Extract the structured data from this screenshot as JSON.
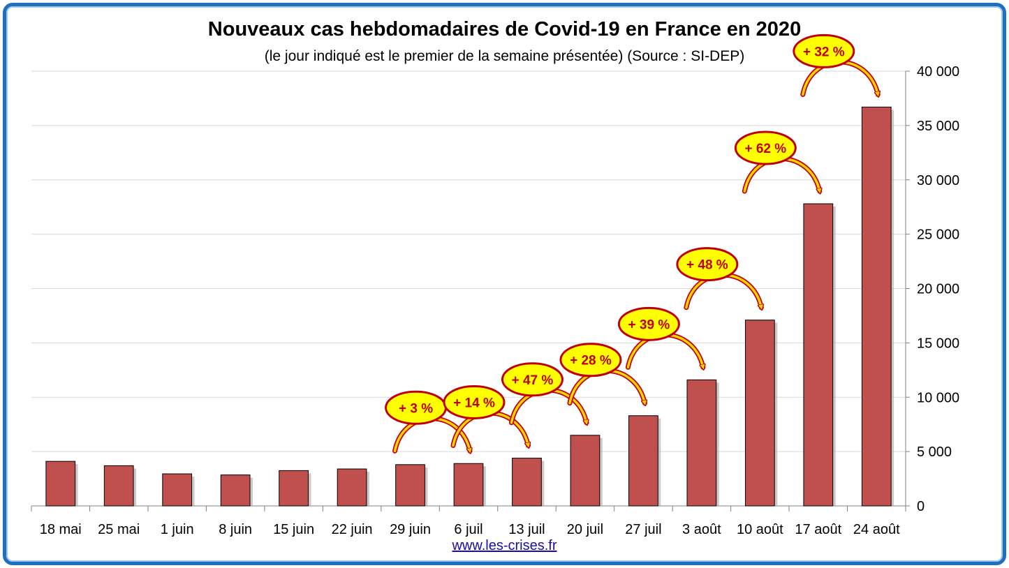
{
  "chart_data": {
    "type": "bar",
    "title": "Nouveaux cas hebdomadaires de Covid-19 en France en 2020",
    "subtitle": "(le jour indiqué est le premier de la semaine présentée) (Source : SI-DEP)",
    "categories": [
      "18 mai",
      "25 mai",
      "1 juin",
      "8 juin",
      "15 juin",
      "22 juin",
      "29 juin",
      "6 juil",
      "13 juil",
      "20 juil",
      "27 juil",
      "3 août",
      "10 août",
      "17 août",
      "24 août"
    ],
    "values": [
      4100,
      3700,
      2950,
      2850,
      3250,
      3400,
      3800,
      3900,
      4400,
      6500,
      8300,
      11600,
      17100,
      27800,
      36700
    ],
    "ylim": [
      0,
      40000
    ],
    "yticks": [
      0,
      5000,
      10000,
      15000,
      20000,
      25000,
      30000,
      35000,
      40000
    ],
    "ytick_labels": [
      "0",
      "5 000",
      "10 000",
      "15 000",
      "20 000",
      "25 000",
      "30 000",
      "35 000",
      "40 000"
    ],
    "y_axis_side": "right",
    "grid": true,
    "bar_color": "#c0504d",
    "annotations": [
      {
        "from": "29 juin",
        "to": "6 juil",
        "label": "+ 3 %"
      },
      {
        "from": "6 juil",
        "to": "13 juil",
        "label": "+ 14 %"
      },
      {
        "from": "13 juil",
        "to": "20 juil",
        "label": "+ 47 %"
      },
      {
        "from": "20 juil",
        "to": "27 juil",
        "label": "+ 28 %"
      },
      {
        "from": "27 juil",
        "to": "3 août",
        "label": "+ 39 %"
      },
      {
        "from": "3 août",
        "to": "10 août",
        "label": "+ 48 %"
      },
      {
        "from": "10 août",
        "to": "17 août",
        "label": "+ 62 %"
      },
      {
        "from": "17 août",
        "to": "24 août",
        "label": "+ 32 %"
      }
    ],
    "annotation_fill": "#ffff00",
    "annotation_color": "#c00000"
  },
  "footer": {
    "source_link": "www.les-crises.fr"
  }
}
